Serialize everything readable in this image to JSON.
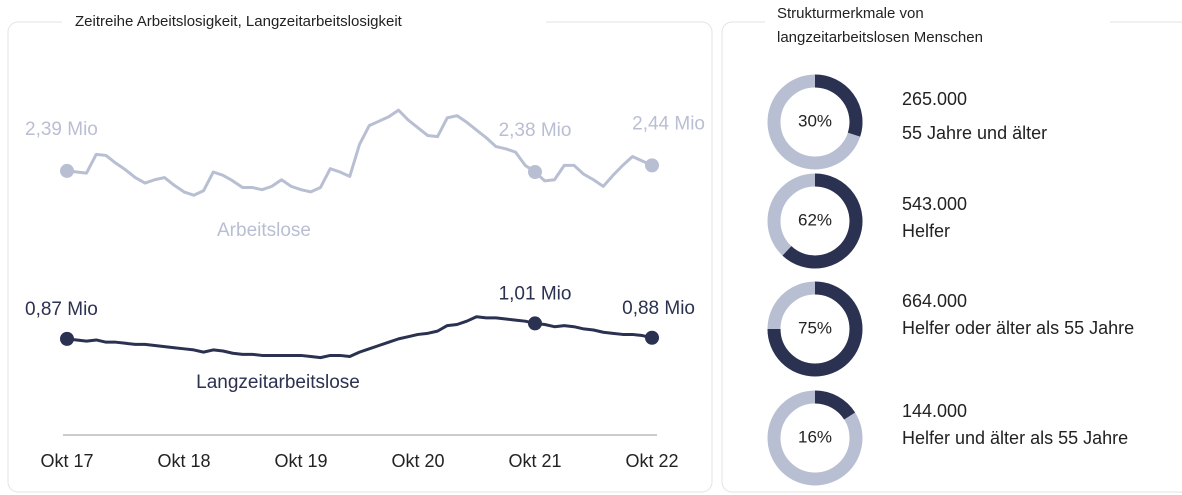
{
  "chart_data": [
    {
      "type": "line",
      "title": "Zeitreihe Arbeitslosigkeit, Langzeitarbeitslosigkeit",
      "categories": [
        "Okt 17",
        null,
        null,
        null,
        null,
        null,
        null,
        null,
        null,
        null,
        null,
        null,
        "Okt 18",
        null,
        null,
        null,
        null,
        null,
        null,
        null,
        null,
        null,
        null,
        null,
        "Okt 19",
        null,
        null,
        null,
        null,
        null,
        null,
        null,
        null,
        null,
        null,
        null,
        "Okt 20",
        null,
        null,
        null,
        null,
        null,
        null,
        null,
        null,
        null,
        null,
        null,
        "Okt 21",
        null,
        null,
        null,
        null,
        null,
        null,
        null,
        null,
        null,
        null,
        null,
        "Okt 22"
      ],
      "ylim": [
        0,
        3.4
      ],
      "series": [
        {
          "name": "Arbeitslose",
          "color": "#b9bfd3",
          "values": [
            2.39,
            2.38,
            2.37,
            2.54,
            2.53,
            2.46,
            2.4,
            2.33,
            2.28,
            2.31,
            2.33,
            2.26,
            2.2,
            2.17,
            2.21,
            2.38,
            2.35,
            2.3,
            2.24,
            2.24,
            2.22,
            2.25,
            2.31,
            2.25,
            2.22,
            2.2,
            2.24,
            2.41,
            2.38,
            2.34,
            2.63,
            2.8,
            2.84,
            2.88,
            2.94,
            2.85,
            2.78,
            2.71,
            2.7,
            2.87,
            2.89,
            2.83,
            2.76,
            2.69,
            2.61,
            2.59,
            2.56,
            2.44,
            2.38,
            2.3,
            2.31,
            2.44,
            2.44,
            2.36,
            2.31,
            2.25,
            2.35,
            2.44,
            2.52,
            2.48,
            2.44
          ],
          "value_labels": [
            "2,39 Mio",
            null,
            null,
            null,
            null,
            null,
            null,
            null,
            null,
            null,
            null,
            null,
            null,
            null,
            null,
            null,
            null,
            null,
            null,
            null,
            null,
            null,
            null,
            null,
            null,
            null,
            null,
            null,
            null,
            null,
            null,
            null,
            null,
            null,
            null,
            null,
            null,
            null,
            null,
            null,
            null,
            null,
            null,
            null,
            null,
            null,
            null,
            null,
            "2,38 Mio",
            null,
            null,
            null,
            null,
            null,
            null,
            null,
            null,
            null,
            null,
            null,
            "2,44 Mio"
          ]
        },
        {
          "name": "Langzeitarbeitslose",
          "color": "#2b3150",
          "values": [
            0.87,
            0.86,
            0.85,
            0.86,
            0.84,
            0.84,
            0.83,
            0.82,
            0.82,
            0.81,
            0.8,
            0.79,
            0.78,
            0.77,
            0.75,
            0.77,
            0.76,
            0.74,
            0.73,
            0.73,
            0.72,
            0.72,
            0.72,
            0.72,
            0.72,
            0.71,
            0.7,
            0.72,
            0.72,
            0.71,
            0.75,
            0.78,
            0.81,
            0.84,
            0.87,
            0.89,
            0.91,
            0.92,
            0.94,
            0.99,
            1.0,
            1.03,
            1.07,
            1.06,
            1.06,
            1.05,
            1.04,
            1.03,
            1.01,
            1.0,
            0.98,
            0.99,
            0.98,
            0.96,
            0.95,
            0.93,
            0.92,
            0.91,
            0.91,
            0.9,
            0.88
          ],
          "value_labels": [
            "0,87 Mio",
            null,
            null,
            null,
            null,
            null,
            null,
            null,
            null,
            null,
            null,
            null,
            null,
            null,
            null,
            null,
            null,
            null,
            null,
            null,
            null,
            null,
            null,
            null,
            null,
            null,
            null,
            null,
            null,
            null,
            null,
            null,
            null,
            null,
            null,
            null,
            null,
            null,
            null,
            null,
            null,
            null,
            null,
            null,
            null,
            null,
            null,
            null,
            "1,01 Mio",
            null,
            null,
            null,
            null,
            null,
            null,
            null,
            null,
            null,
            null,
            null,
            "0,88 Mio"
          ]
        }
      ]
    },
    {
      "type": "donut",
      "title": "Strukturmerkmale von langzeitarbeitslosen Menschen",
      "color": "#2b3150",
      "track_color": "#b9bfd3",
      "categories": [
        "55 Jahre und älter",
        "Helfer",
        "Helfer oder älter als 55 Jahre",
        "Helfer und älter als 55 Jahre"
      ],
      "values": [
        30,
        62,
        75,
        16
      ],
      "value_labels": [
        "30%",
        "62%",
        "75%",
        "16%"
      ],
      "counts": [
        265000,
        543000,
        664000,
        144000
      ],
      "count_labels": [
        "265.000",
        "543.000",
        "664.000",
        "144.000"
      ]
    }
  ]
}
